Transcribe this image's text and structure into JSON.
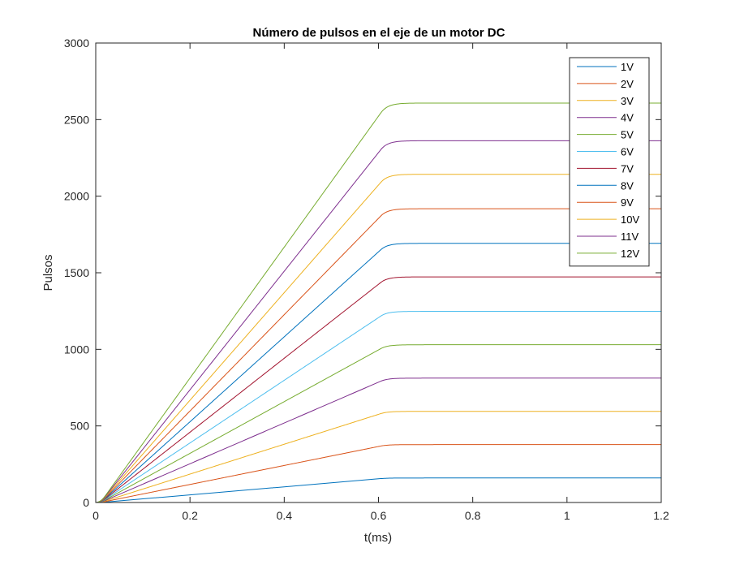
{
  "chart_data": {
    "type": "line",
    "title": "Número de pulsos en el eje de un motor DC",
    "xlabel": "t(ms)",
    "ylabel": "Pulsos",
    "xlim": [
      0,
      1.2
    ],
    "ylim": [
      0,
      3000
    ],
    "xticks": [
      0,
      0.2,
      0.4,
      0.6,
      0.8,
      1,
      1.2
    ],
    "xtick_labels": [
      "0",
      "0.2",
      "0.4",
      "0.6",
      "0.8",
      "1",
      "1.2"
    ],
    "yticks": [
      0,
      500,
      1000,
      1500,
      2000,
      2500,
      3000
    ],
    "ytick_labels": [
      "0",
      "500",
      "1000",
      "1500",
      "2000",
      "2500",
      "3000"
    ],
    "grid": false,
    "legend_position": "top-right",
    "ramp_end_time": 0.62,
    "series": [
      {
        "name": "1V",
        "color": "#0072BD",
        "final_value": 160
      },
      {
        "name": "2V",
        "color": "#D95319",
        "final_value": 378
      },
      {
        "name": "3V",
        "color": "#EDB120",
        "final_value": 595
      },
      {
        "name": "4V",
        "color": "#7E2F8E",
        "final_value": 812
      },
      {
        "name": "5V",
        "color": "#77AC30",
        "final_value": 1030
      },
      {
        "name": "6V",
        "color": "#4DBEEE",
        "final_value": 1248
      },
      {
        "name": "7V",
        "color": "#A2142F",
        "final_value": 1473
      },
      {
        "name": "8V",
        "color": "#0072BD",
        "final_value": 1692
      },
      {
        "name": "9V",
        "color": "#D95319",
        "final_value": 1918
      },
      {
        "name": "10V",
        "color": "#EDB120",
        "final_value": 2143
      },
      {
        "name": "11V",
        "color": "#7E2F8E",
        "final_value": 2362
      },
      {
        "name": "12V",
        "color": "#77AC30",
        "final_value": 2608
      }
    ]
  }
}
